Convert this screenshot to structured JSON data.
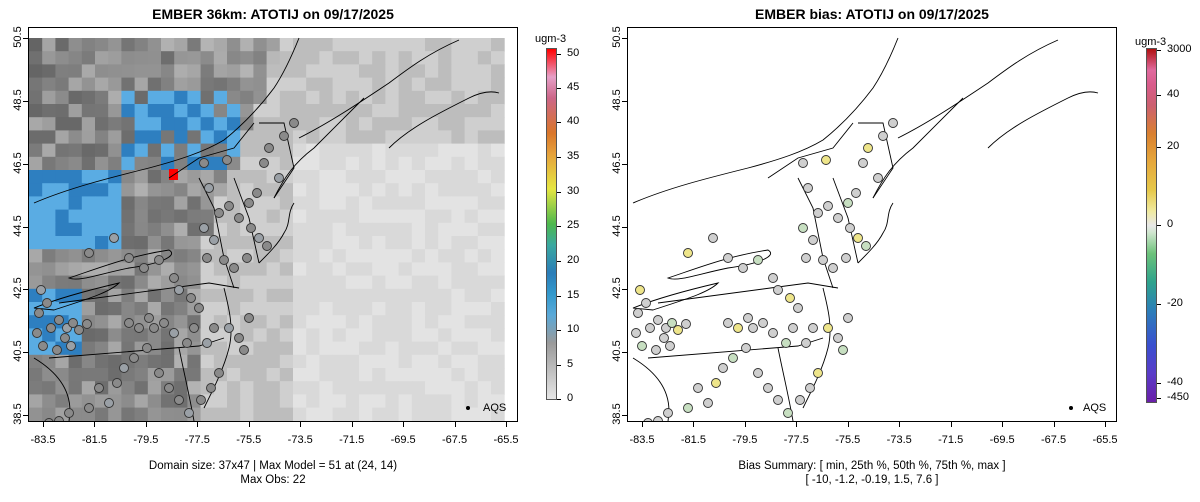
{
  "left": {
    "title": "EMBER 36km: ATOTIJ on 09/17/2025",
    "yticks": [
      "38.5",
      "40.5",
      "42.5",
      "44.5",
      "46.5",
      "48.5",
      "50.5"
    ],
    "xticks": [
      "-83.5",
      "-81.5",
      "-79.5",
      "-77.5",
      "-75.5",
      "-73.5",
      "-71.5",
      "-69.5",
      "-67.5",
      "-65.5"
    ],
    "caption1": "Domain size: 37x47 | Max Model = 51 at (24, 14)",
    "caption2": "Max Obs: 22",
    "colorbar": {
      "unit": "ugm-3",
      "labels": [
        "0",
        "5",
        "10",
        "15",
        "20",
        "25",
        "30",
        "35",
        "40",
        "45",
        "50"
      ],
      "range": [
        0,
        51
      ]
    },
    "legend": "AQS"
  },
  "right": {
    "title": "EMBER bias: ATOTIJ on 09/17/2025",
    "yticks": [
      "38.5",
      "40.5",
      "42.5",
      "44.5",
      "46.5",
      "48.5",
      "50.5"
    ],
    "xticks": [
      "-83.5",
      "-81.5",
      "-79.5",
      "-77.5",
      "-75.5",
      "-73.5",
      "-71.5",
      "-69.5",
      "-67.5",
      "-65.5"
    ],
    "caption1": "Bias Summary: [ min, 25th %, 50th %, 75th %, max ]",
    "caption2": "[ -10,   -1.2,   -0.19,   1.5,   7.6 ]",
    "colorbar": {
      "unit": "ugm-3",
      "labels": [
        "3000",
        "40",
        "20",
        "0",
        "-20",
        "-40",
        "-450"
      ]
    },
    "legend": "AQS"
  },
  "colors": {
    "model_low": "#d9d9d9",
    "model_mid": "#8e8e8e",
    "model_blue": "#4ea9e0",
    "model_max": "#ff0000",
    "bias_neutral": "#cfcfcf",
    "bias_positive": "#eee58a",
    "bias_negative": "#c7dfc1"
  }
}
